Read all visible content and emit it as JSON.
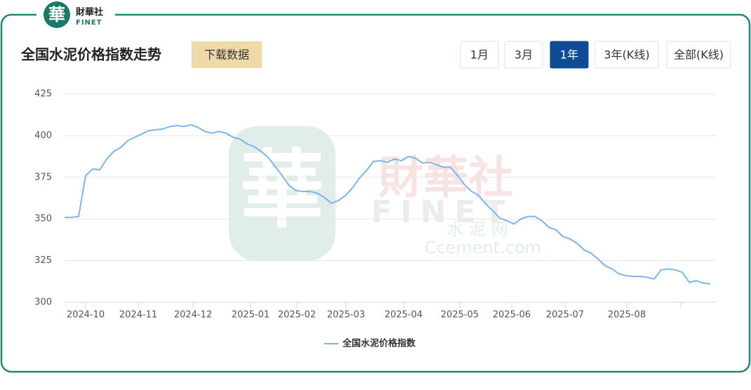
{
  "logo": {
    "mark": "華",
    "name": "財華社",
    "en": "FINET"
  },
  "watermark": {
    "mark": "華",
    "name": "財華社",
    "en": "FINET",
    "sub": "水 泥 网",
    "site": "Ccement.com"
  },
  "header": {
    "title": "全国水泥价格指数走势",
    "download": "下载数据",
    "tabs": [
      "1月",
      "3月",
      "1年",
      "3年(K线)",
      "全部(K线)"
    ],
    "active_tab": 2
  },
  "chart_data": {
    "type": "line",
    "series": [
      {
        "name": "全国水泥价格指数",
        "color": "#7cb5ec",
        "values": [
          351,
          351,
          351.5,
          376,
          380,
          379.5,
          386,
          390.5,
          393,
          397,
          399,
          401,
          403,
          403.5,
          404,
          405.5,
          406,
          405.5,
          406.5,
          405,
          402.5,
          401.5,
          402.5,
          401.5,
          399,
          398,
          395,
          393.5,
          390.5,
          387,
          381.5,
          376,
          370,
          367,
          366.5,
          366.5,
          365.5,
          363,
          359.5,
          361,
          364,
          368.5,
          374.5,
          379,
          384.5,
          385,
          384,
          386,
          385,
          387.5,
          386.5,
          383.5,
          384,
          382.5,
          381,
          381,
          376,
          370.5,
          366.5,
          364,
          359,
          355,
          350.5,
          349,
          347,
          350,
          351.5,
          351.5,
          349,
          345,
          343.5,
          339.5,
          338,
          335.5,
          331.5,
          329.5,
          326,
          322,
          320,
          317,
          316,
          315.5,
          315.5,
          315,
          314,
          319.5,
          320,
          319.5,
          318,
          312,
          313,
          311.5,
          311
        ]
      }
    ],
    "xlim": [
      0,
      92.8
    ],
    "xticks": [
      {
        "value": 3,
        "label": "2024-10"
      },
      {
        "value": 10.5,
        "label": "2024-11"
      },
      {
        "value": 18.3,
        "label": "2024-12"
      },
      {
        "value": 26.5,
        "label": "2025-01"
      },
      {
        "value": 33.1,
        "label": "2025-02"
      },
      {
        "value": 40.1,
        "label": "2025-03"
      },
      {
        "value": 48.3,
        "label": "2025-04"
      },
      {
        "value": 56.3,
        "label": "2025-05"
      },
      {
        "value": 63.7,
        "label": "2025-06"
      },
      {
        "value": 71.3,
        "label": "2025-07"
      },
      {
        "value": 80.1,
        "label": "2025-08"
      },
      {
        "value": 87.8,
        "label": null
      }
    ],
    "ylim": [
      300,
      425
    ],
    "yticks": [
      300,
      325,
      350,
      375,
      400,
      425
    ],
    "grid": true,
    "legend": "bottom"
  }
}
